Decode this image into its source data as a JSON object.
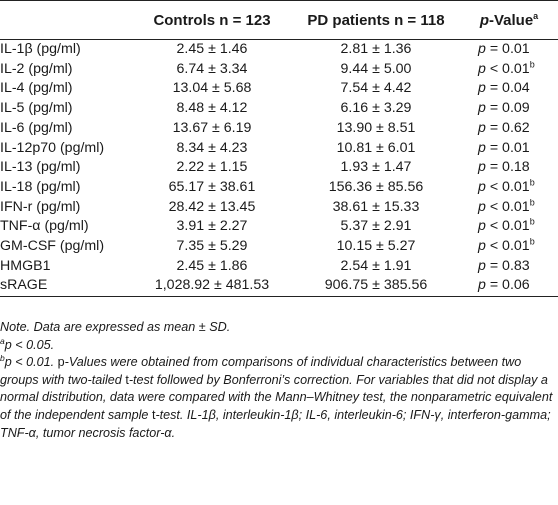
{
  "table": {
    "headers": {
      "variable": "",
      "controls": "Controls n = 123",
      "pd": "PD patients n = 118",
      "pvalue_italic": "p",
      "pvalue_rest": "-Value",
      "pvalue_sup": "a"
    },
    "rows": [
      {
        "label": "IL-1β (pg/ml)",
        "controls": "2.45 ± 1.46",
        "pd": "2.81 ± 1.36",
        "p_symbol": "p",
        "p_text": " = 0.01",
        "p_sup": ""
      },
      {
        "label": "IL-2 (pg/ml)",
        "controls": "6.74 ± 3.34",
        "pd": "9.44 ± 5.00",
        "p_symbol": "p",
        "p_text": " < 0.01",
        "p_sup": "b"
      },
      {
        "label": "IL-4 (pg/ml)",
        "controls": "13.04 ± 5.68",
        "pd": "7.54 ± 4.42",
        "p_symbol": "p",
        "p_text": " = 0.04",
        "p_sup": ""
      },
      {
        "label": "IL-5 (pg/ml)",
        "controls": "8.48 ± 4.12",
        "pd": "6.16 ± 3.29",
        "p_symbol": "p",
        "p_text": " = 0.09",
        "p_sup": ""
      },
      {
        "label": "IL-6 (pg/ml)",
        "controls": "13.67 ± 6.19",
        "pd": "13.90 ± 8.51",
        "p_symbol": "p",
        "p_text": " = 0.62",
        "p_sup": ""
      },
      {
        "label": "IL-12p70 (pg/ml)",
        "controls": "8.34 ± 4.23",
        "pd": "10.81 ± 6.01",
        "p_symbol": "p",
        "p_text": " = 0.01",
        "p_sup": ""
      },
      {
        "label": "IL-13 (pg/ml)",
        "controls": "2.22 ± 1.15",
        "pd": "1.93 ± 1.47",
        "p_symbol": "p",
        "p_text": " = 0.18",
        "p_sup": ""
      },
      {
        "label": "IL-18 (pg/ml)",
        "controls": "65.17 ± 38.61",
        "pd": "156.36 ± 85.56",
        "p_symbol": "p",
        "p_text": " < 0.01",
        "p_sup": "b"
      },
      {
        "label": "IFN-r (pg/ml)",
        "controls": "28.42 ± 13.45",
        "pd": "38.61 ± 15.33",
        "p_symbol": "p",
        "p_text": " < 0.01",
        "p_sup": "b"
      },
      {
        "label": "TNF-α (pg/ml)",
        "controls": "3.91 ± 2.27",
        "pd": "5.37 ± 2.91",
        "p_symbol": "p",
        "p_text": " < 0.01",
        "p_sup": "b"
      },
      {
        "label": "GM-CSF (pg/ml)",
        "controls": "7.35 ± 5.29",
        "pd": "10.15 ± 5.27",
        "p_symbol": "p",
        "p_text": " < 0.01",
        "p_sup": "b"
      },
      {
        "label": "HMGB1",
        "controls": "2.45 ± 1.86",
        "pd": "2.54 ± 1.91",
        "p_symbol": "p",
        "p_text": " = 0.83",
        "p_sup": ""
      },
      {
        "label": "sRAGE",
        "controls": "1,028.92 ± 481.53",
        "pd": "906.75 ± 385.56",
        "p_symbol": "p",
        "p_text": " = 0.06",
        "p_sup": ""
      }
    ]
  },
  "notes": {
    "line1": "Note. Data are expressed as mean ± SD.",
    "a_sup": "a",
    "a_text": "p < 0.05.",
    "b_sup": "b",
    "b_italic": "p",
    "b_text_1": " < 0.01. ",
    "b_upright_1": "p",
    "b_text_2": "-Values were obtained from comparisons of individual characteristics between two groups with two-tailed ",
    "b_upright_2": "t",
    "b_text_3": "-test followed by Bonferroni’s correction. For variables that did not display a normal distribution, data were compared with the Mann–Whitney test, the nonparametric equivalent of the independent sample ",
    "b_upright_3": "t",
    "b_text_4": "-test. IL-1β, interleukin-1β; IL-6, interleukin-6; IFN-γ, interferon-gamma; TNF-α, tumor necrosis factor-α."
  }
}
